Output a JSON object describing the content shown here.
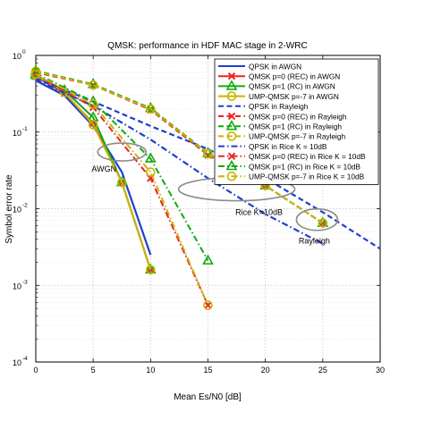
{
  "chart_data": {
    "type": "line",
    "title": "QMSK: performance in HDF MAC stage in 2-WRC",
    "xlabel": "Mean Es/N0 [dB]",
    "ylabel": "Symbol error rate",
    "xlim": [
      0,
      30
    ],
    "ylim": [
      0.0001,
      1
    ],
    "yscale": "log",
    "grid": true,
    "legend_position": "top-right",
    "x_ticks": [
      "0",
      "5",
      "10",
      "15",
      "20",
      "25",
      "30"
    ],
    "y_ticks": [
      {
        "value": 1,
        "mant": "10",
        "exp": "0"
      },
      {
        "value": 0.1,
        "mant": "10",
        "exp": "-1"
      },
      {
        "value": 0.01,
        "mant": "10",
        "exp": "-2"
      },
      {
        "value": 0.001,
        "mant": "10",
        "exp": "-3"
      },
      {
        "value": 0.0001,
        "mant": "10",
        "exp": "-4"
      }
    ],
    "series": [
      {
        "name": "QPSK in AWGN",
        "color": "#1f3fd0",
        "dash": "solid",
        "marker": "none",
        "x": [
          0,
          2.5,
          5,
          7.5,
          10
        ],
        "y": [
          0.47,
          0.3,
          0.12,
          0.03,
          0.0025
        ]
      },
      {
        "name": "QMSK p=0 (REC) in AWGN",
        "color": "#ee2222",
        "dash": "solid",
        "marker": "x",
        "x": [
          0,
          2.5,
          5,
          7.5,
          10
        ],
        "y": [
          0.53,
          0.32,
          0.13,
          0.022,
          0.0016
        ]
      },
      {
        "name": "QMSK p=1 (RC) in AWGN",
        "color": "#11aa11",
        "dash": "solid",
        "marker": "triangle",
        "x": [
          0,
          2.5,
          5,
          7.5,
          10
        ],
        "y": [
          0.55,
          0.35,
          0.155,
          0.022,
          0.0016
        ]
      },
      {
        "name": "UMP-QMSK p=-7 in AWGN",
        "color": "#c8b400",
        "dash": "solid",
        "marker": "circle",
        "x": [
          0,
          2.5,
          5,
          7.5,
          10
        ],
        "y": [
          0.55,
          0.33,
          0.125,
          0.022,
          0.0016
        ]
      },
      {
        "name": "QPSK in Rayleigh",
        "color": "#1f3fd0",
        "dash": "dashed",
        "marker": "none",
        "x": [
          0,
          5,
          10,
          15,
          20,
          25,
          30
        ],
        "y": [
          0.5,
          0.25,
          0.12,
          0.06,
          0.025,
          0.009,
          0.003
        ]
      },
      {
        "name": "QMSK p=0 (REC) in Rayleigh",
        "color": "#ee2222",
        "dash": "dashed",
        "marker": "x",
        "x": [
          0,
          5,
          10,
          15,
          20,
          25
        ],
        "y": [
          0.6,
          0.41,
          0.195,
          0.05,
          0.02,
          0.0065
        ]
      },
      {
        "name": "QMSK p=1 (RC) in Rayleigh",
        "color": "#11aa11",
        "dash": "dashed",
        "marker": "triangle",
        "x": [
          0,
          5,
          10,
          15,
          20,
          25
        ],
        "y": [
          0.63,
          0.42,
          0.205,
          0.053,
          0.02,
          0.0065
        ]
      },
      {
        "name": "UMP-QMSK p=-7 in Rayleigh",
        "color": "#c8b400",
        "dash": "dashed",
        "marker": "circle",
        "x": [
          0,
          5,
          10,
          15,
          20,
          25
        ],
        "y": [
          0.62,
          0.41,
          0.2,
          0.052,
          0.02,
          0.0065
        ]
      },
      {
        "name": "QPSK in Rice K = 10dB",
        "color": "#1f3fd0",
        "dash": "dashdot",
        "marker": "none",
        "x": [
          0,
          5,
          10,
          15,
          20,
          25
        ],
        "y": [
          0.48,
          0.22,
          0.08,
          0.025,
          0.0085,
          0.0035
        ]
      },
      {
        "name": "QMSK p=0 (REC) in Rice K = 10dB",
        "color": "#ee2222",
        "dash": "dashdot",
        "marker": "x",
        "x": [
          0,
          5,
          10,
          15
        ],
        "y": [
          0.56,
          0.21,
          0.025,
          0.00055
        ]
      },
      {
        "name": "QMSK p=1 (RC) in Rice K = 10dB",
        "color": "#11aa11",
        "dash": "dashdot",
        "marker": "triangle",
        "x": [
          0,
          5,
          10,
          15
        ],
        "y": [
          0.58,
          0.25,
          0.045,
          0.0021
        ]
      },
      {
        "name": "UMP-QMSK p=-7 in Rice K = 10dB",
        "color": "#c8b400",
        "dash": "dashdot",
        "marker": "circle",
        "x": [
          0,
          5,
          10,
          15
        ],
        "y": [
          0.57,
          0.23,
          0.03,
          0.00055
        ]
      }
    ],
    "annotations": [
      {
        "text": "AWGN",
        "ellipse_center": [
          7.5,
          0.055
        ]
      },
      {
        "text": "Rice K=10dB",
        "ellipse_center": [
          17.5,
          0.018
        ]
      },
      {
        "text": "Rayleigh",
        "ellipse_center": [
          24.5,
          0.0072
        ]
      }
    ]
  }
}
